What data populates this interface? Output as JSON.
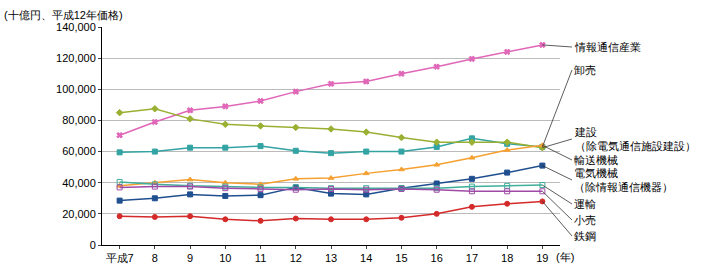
{
  "chart_data": {
    "type": "line",
    "y_label": "(十億円、平成12年価格)",
    "x_label": "(年)",
    "categories": [
      "平成7",
      "8",
      "9",
      "10",
      "11",
      "12",
      "13",
      "14",
      "15",
      "16",
      "17",
      "18",
      "19"
    ],
    "ylim": [
      0,
      140000
    ],
    "yticks": [
      0,
      {
        "value": 20000,
        "label": "20,000"
      },
      {
        "value": 40000,
        "label": "40,000"
      },
      {
        "value": 60000,
        "label": "60,000"
      },
      {
        "value": 80000,
        "label": "80,000"
      },
      {
        "value": 100000,
        "label": "100,000"
      },
      {
        "value": 120000,
        "label": "120,000"
      },
      {
        "value": 140000,
        "label": "140,000"
      }
    ],
    "grid": true,
    "series": [
      {
        "name": "情報通信産業",
        "color": "#e066b8",
        "marker": "x",
        "values": [
          70500,
          79000,
          86500,
          89000,
          92500,
          98500,
          103500,
          105000,
          110000,
          114500,
          119500,
          124000,
          128500
        ]
      },
      {
        "name": "卸売",
        "color": "#33a3a3",
        "marker": "square",
        "values": [
          59500,
          60000,
          62500,
          62500,
          63500,
          60500,
          59000,
          60000,
          60000,
          63000,
          68500,
          65000,
          63000
        ]
      },
      {
        "name": "建設（除電気通信施設建設）",
        "color": "#99b033",
        "marker": "diamond",
        "values": [
          85000,
          87500,
          81000,
          77500,
          76500,
          75500,
          74500,
          72500,
          69000,
          66000,
          66000,
          66000,
          62500
        ]
      },
      {
        "name": "輸送機械",
        "color": "#f5a030",
        "marker": "triangle-up",
        "values": [
          38000,
          40000,
          42000,
          40000,
          39000,
          42500,
          43000,
          46000,
          48500,
          51500,
          56000,
          61000,
          64000
        ]
      },
      {
        "name": "電気機械（除情報通信機器）",
        "color": "#1f4f8f",
        "marker": "square",
        "values": [
          28500,
          30000,
          32500,
          31500,
          32000,
          37000,
          33000,
          32500,
          36500,
          39500,
          42500,
          46500,
          51000
        ]
      },
      {
        "name": "運輸",
        "color": "#3fae9a",
        "marker": "square-open",
        "values": [
          40500,
          39000,
          38000,
          37500,
          37000,
          37000,
          36500,
          36500,
          36500,
          36500,
          37500,
          38000,
          38500
        ]
      },
      {
        "name": "小売",
        "color": "#a04aa8",
        "marker": "square-open",
        "values": [
          37000,
          37500,
          37500,
          36500,
          36000,
          35500,
          36000,
          35500,
          36000,
          35500,
          34500,
          34500,
          34500
        ]
      },
      {
        "name": "鉄鋼",
        "color": "#d42a2a",
        "marker": "circle",
        "values": [
          18500,
          18000,
          18500,
          16500,
          15500,
          17000,
          16500,
          16500,
          17500,
          20000,
          24500,
          26500,
          28000
        ]
      }
    ]
  }
}
